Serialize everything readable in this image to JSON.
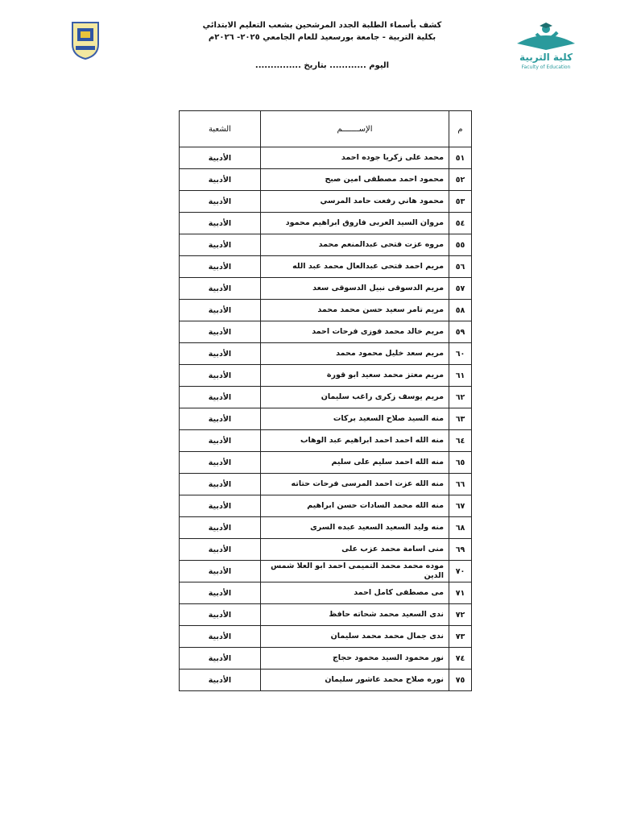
{
  "header": {
    "line1": "كشف بأسماء الطلبة الجدد المرشحين بشعب التعليم الابتدائي",
    "line2": "بكلية التربية - جامعة بورسعيد للعام الجامعي ٢٠٢٥- ٢٠٢٦م",
    "line3": "اليوم ............ بتاريخ ...............",
    "logo_text_ar": "كلية التربية",
    "logo_text_en": "Faculty of Education"
  },
  "table": {
    "headers": {
      "num": "م",
      "name": "الإســـــــم",
      "branch": "الشعبة"
    },
    "rows": [
      {
        "num": "٥١",
        "name": "محمد على زكريا جوده احمد",
        "branch": "الأدبية"
      },
      {
        "num": "٥٢",
        "name": "محمود احمد مصطفى امين صبح",
        "branch": "الأدبية"
      },
      {
        "num": "٥٣",
        "name": "محمود هاني رفعت حامد المرسي",
        "branch": "الأدبية"
      },
      {
        "num": "٥٤",
        "name": "مروان السيد  العربى فاروق ابراهيم محمود",
        "branch": "الأدبية"
      },
      {
        "num": "٥٥",
        "name": "مروه عزت فتحى عبدالمنعم محمد",
        "branch": "الأدبية"
      },
      {
        "num": "٥٦",
        "name": "مريم احمد فتحى عبدالعال محمد عبد الله",
        "branch": "الأدبية"
      },
      {
        "num": "٥٧",
        "name": "مريم الدسوقى نبيل الدسوقى سعد",
        "branch": "الأدبية"
      },
      {
        "num": "٥٨",
        "name": "مريم تامر سعيد حسن محمد محمد",
        "branch": "الأدبية"
      },
      {
        "num": "٥٩",
        "name": "مريم خالد محمد فوزى فرحات احمد",
        "branch": "الأدبية"
      },
      {
        "num": "٦٠",
        "name": "مريم سعد خليل محمود محمد",
        "branch": "الأدبية"
      },
      {
        "num": "٦١",
        "name": "مريم معتز محمد سعيد ابو قورة",
        "branch": "الأدبية"
      },
      {
        "num": "٦٢",
        "name": "مريم يوسف زكرى راغب سليمان",
        "branch": "الأدبية"
      },
      {
        "num": "٦٣",
        "name": "منه السيد صلاح السعيد بركات",
        "branch": "الأدبية"
      },
      {
        "num": "٦٤",
        "name": "منه الله احمد احمد ابراهيم عبد الوهاب",
        "branch": "الأدبية"
      },
      {
        "num": "٦٥",
        "name": "منه الله احمد سليم على سليم",
        "branch": "الأدبية"
      },
      {
        "num": "٦٦",
        "name": "منه الله عزت احمد المرسى فرحات حتاته",
        "branch": "الأدبية"
      },
      {
        "num": "٦٧",
        "name": "منه الله محمد السادات حسن ابراهيم",
        "branch": "الأدبية"
      },
      {
        "num": "٦٨",
        "name": "منه وليد السعيد السعيد عبده السرى",
        "branch": "الأدبية"
      },
      {
        "num": "٦٩",
        "name": "منى اسامة محمد عزب على",
        "branch": "الأدبية"
      },
      {
        "num": "٧٠",
        "name": "موده محمد محمد التميمى احمد ابو العلا شمس الدين",
        "branch": "الأدبية"
      },
      {
        "num": "٧١",
        "name": "مى مصطفى كامل احمد",
        "branch": "الأدبية"
      },
      {
        "num": "٧٢",
        "name": "ندى السعيد محمد شحاته حافظ",
        "branch": "الأدبية"
      },
      {
        "num": "٧٣",
        "name": "ندى جمال محمد محمد سليمان",
        "branch": "الأدبية"
      },
      {
        "num": "٧٤",
        "name": "نور محمود   السيد محمود حجاج",
        "branch": "الأدبية"
      },
      {
        "num": "٧٥",
        "name": "نوره صلاح محمد عاشور سليمان",
        "branch": "الأدبية"
      }
    ]
  }
}
